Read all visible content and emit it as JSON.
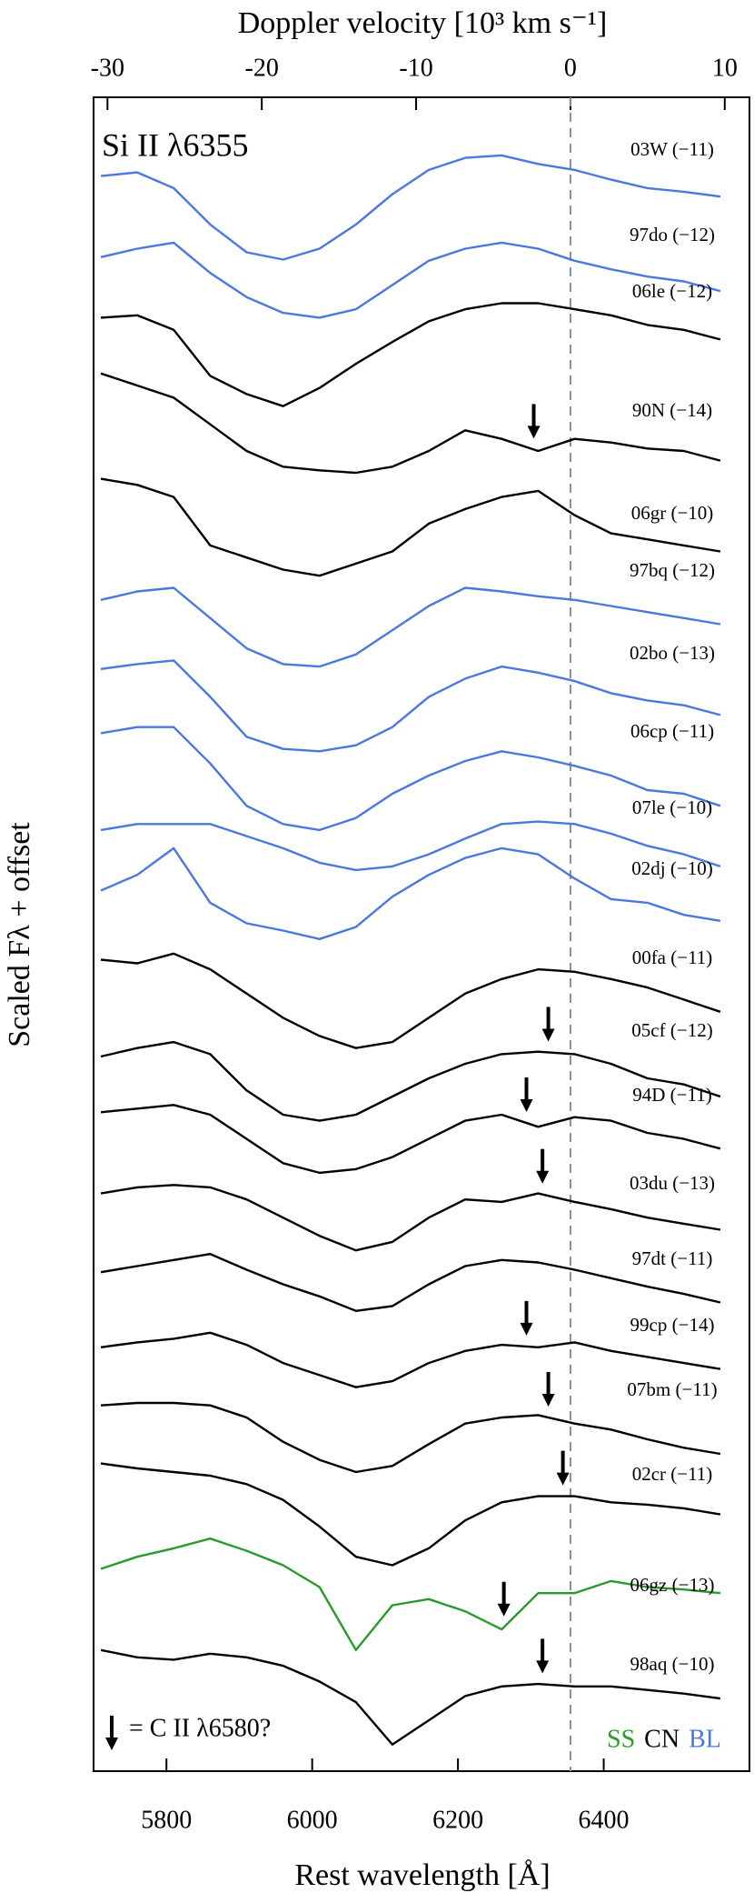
{
  "chart_data": {
    "type": "line",
    "annotation": "Si II λ6355",
    "xlabel": "Rest wavelength   [Å]",
    "x2label": "Doppler velocity   [10³ km s⁻¹]",
    "ylabel": "Scaled Fλ + offset",
    "xlim": [
      5700,
      6600
    ],
    "xticks": [
      5800,
      6000,
      6200,
      6400
    ],
    "x2lim": [
      -30.9,
      11.6
    ],
    "x2ticks": [
      -30,
      -20,
      -10,
      0,
      10
    ],
    "ylim": [
      0,
      1382
    ],
    "x": [
      5710,
      5760,
      5810,
      5860,
      5910,
      5960,
      6010,
      6060,
      6110,
      6160,
      6210,
      6260,
      6310,
      6360,
      6410,
      6460,
      6510,
      6560
    ],
    "series": [
      {
        "name": "03W (−11)",
        "color": "#4a78e0",
        "values": [
          1317,
          1320,
          1307,
          1277,
          1254,
          1248,
          1257,
          1277,
          1302,
          1322,
          1332,
          1334,
          1327,
          1322,
          1314,
          1307,
          1304,
          1300
        ]
      },
      {
        "name": "97do (−12)",
        "color": "#4a78e0",
        "values": [
          1250,
          1257,
          1262,
          1237,
          1217,
          1204,
          1200,
          1207,
          1227,
          1247,
          1257,
          1262,
          1257,
          1247,
          1240,
          1234,
          1230,
          1222
        ]
      },
      {
        "name": "06le (−12)",
        "color": "#000000",
        "values": [
          1200,
          1202,
          1190,
          1152,
          1137,
          1127,
          1142,
          1162,
          1180,
          1197,
          1207,
          1212,
          1212,
          1207,
          1202,
          1194,
          1190,
          1182
        ]
      },
      {
        "name": "90N (−14)",
        "color": "#000000",
        "arrow": 6304,
        "values": [
          1154,
          1144,
          1134,
          1112,
          1090,
          1077,
          1074,
          1072,
          1077,
          1090,
          1107,
          1100,
          1090,
          1100,
          1097,
          1092,
          1090,
          1082
        ]
      },
      {
        "name": "06gr (−10)",
        "color": "#000000",
        "values": [
          1067,
          1062,
          1052,
          1012,
          1002,
          992,
          987,
          997,
          1007,
          1030,
          1042,
          1052,
          1057,
          1037,
          1022,
          1017,
          1012,
          1007
        ]
      },
      {
        "name": "97bq (−12)",
        "color": "#4a78e0",
        "values": [
          967,
          974,
          977,
          952,
          927,
          914,
          912,
          922,
          942,
          962,
          977,
          974,
          970,
          967,
          962,
          957,
          952,
          947
        ]
      },
      {
        "name": "02bo (−13)",
        "color": "#4a78e0",
        "values": [
          910,
          914,
          917,
          887,
          854,
          844,
          842,
          847,
          862,
          887,
          902,
          912,
          907,
          900,
          890,
          884,
          880,
          872
        ]
      },
      {
        "name": "06cp (−11)",
        "color": "#4a78e0",
        "values": [
          857,
          862,
          862,
          832,
          797,
          782,
          777,
          787,
          807,
          822,
          834,
          842,
          837,
          830,
          822,
          810,
          807,
          797
        ]
      },
      {
        "name": "07le (−10)",
        "color": "#4a78e0",
        "values": [
          777,
          782,
          782,
          782,
          772,
          762,
          750,
          744,
          747,
          757,
          770,
          782,
          784,
          782,
          774,
          764,
          757,
          747
        ]
      },
      {
        "name": "02dj (−10)",
        "color": "#4a78e0",
        "values": [
          727,
          740,
          762,
          717,
          700,
          694,
          687,
          697,
          722,
          740,
          754,
          762,
          757,
          737,
          720,
          717,
          707,
          702
        ]
      },
      {
        "name": "00fa (−11)",
        "color": "#000000",
        "values": [
          670,
          667,
          675,
          662,
          642,
          622,
          607,
          597,
          602,
          622,
          642,
          654,
          662,
          660,
          654,
          647,
          637,
          627
        ]
      },
      {
        "name": "05cf (−12)",
        "color": "#000000",
        "arrow": 6324,
        "values": [
          590,
          597,
          602,
          592,
          562,
          542,
          537,
          542,
          557,
          572,
          584,
          592,
          594,
          592,
          584,
          572,
          567,
          557
        ]
      },
      {
        "name": "94D (−11)",
        "color": "#000000",
        "arrow": 6294,
        "values": [
          544,
          547,
          550,
          542,
          522,
          502,
          494,
          497,
          507,
          522,
          537,
          542,
          532,
          540,
          537,
          527,
          522,
          514
        ]
      },
      {
        "name": "03du (−13)",
        "color": "#000000",
        "arrow": 6316,
        "values": [
          477,
          482,
          484,
          482,
          472,
          457,
          442,
          430,
          437,
          457,
          472,
          470,
          477,
          470,
          464,
          457,
          452,
          447
        ]
      },
      {
        "name": "97dt (−11)",
        "color": "#000000",
        "values": [
          412,
          417,
          422,
          427,
          414,
          402,
          392,
          380,
          384,
          402,
          417,
          422,
          420,
          414,
          407,
          400,
          394,
          387
        ]
      },
      {
        "name": "99cp (−14)",
        "color": "#000000",
        "arrow": 6294,
        "values": [
          350,
          354,
          357,
          362,
          352,
          337,
          327,
          317,
          322,
          337,
          347,
          352,
          350,
          354,
          347,
          342,
          337,
          332
        ]
      },
      {
        "name": "07bm (−11)",
        "color": "#000000",
        "arrow": 6324,
        "values": [
          302,
          304,
          304,
          302,
          292,
          272,
          257,
          247,
          252,
          270,
          287,
          292,
          294,
          287,
          282,
          274,
          267,
          262
        ]
      },
      {
        "name": "02cr (−11)",
        "color": "#000000",
        "arrow": 6344,
        "values": [
          254,
          250,
          247,
          244,
          237,
          224,
          202,
          177,
          170,
          184,
          207,
          222,
          227,
          227,
          222,
          220,
          217,
          212
        ]
      },
      {
        "name": "06gz (−13)",
        "color": "#2a9a2a",
        "arrow": 6263,
        "values": [
          167,
          177,
          184,
          192,
          182,
          170,
          152,
          100,
          137,
          142,
          132,
          117,
          147,
          147,
          157,
          152,
          150,
          147
        ]
      },
      {
        "name": "98aq (−10)",
        "color": "#000000",
        "arrow": 6316,
        "values": [
          100,
          94,
          92,
          97,
          94,
          87,
          74,
          57,
          22,
          42,
          62,
          70,
          72,
          70,
          70,
          67,
          64,
          60
        ]
      }
    ],
    "arrow_legend": "= C II λ6580?",
    "classes": [
      {
        "name": "SS",
        "color": "#2a9a2a"
      },
      {
        "name": "CN",
        "color": "#000000"
      },
      {
        "name": "BL",
        "color": "#4a78e0"
      }
    ]
  }
}
